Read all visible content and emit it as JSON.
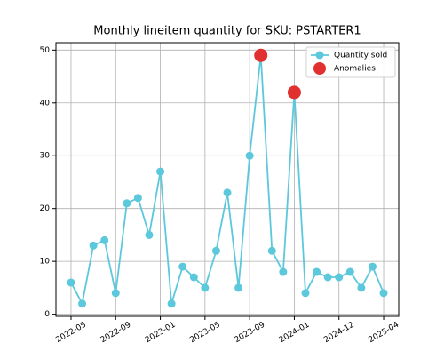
{
  "chart_data": {
    "type": "line",
    "title": "Monthly lineitem quantity for SKU: PSTARTER1",
    "categories": [
      "2022-05",
      null,
      null,
      null,
      "2022-09",
      null,
      null,
      null,
      "2023-01",
      null,
      null,
      null,
      "2023-05",
      null,
      null,
      null,
      "2023-09",
      null,
      null,
      null,
      "2024-01",
      null,
      null,
      null,
      "2024-12",
      null,
      null,
      null,
      "2025-04"
    ],
    "series": [
      {
        "name": "Quantity sold",
        "color": "#5bc8dc",
        "line": true,
        "values": [
          6,
          2,
          13,
          14,
          4,
          21,
          22,
          15,
          27,
          2,
          9,
          7,
          5,
          12,
          23,
          5,
          30,
          49,
          12,
          8,
          42,
          4,
          8,
          7,
          7,
          8,
          5,
          9,
          4
        ]
      },
      {
        "name": "Anomalies",
        "color": "#e03030",
        "line": false,
        "values": [
          null,
          null,
          null,
          null,
          null,
          null,
          null,
          null,
          null,
          null,
          null,
          null,
          null,
          null,
          null,
          null,
          null,
          49,
          null,
          null,
          42,
          null,
          null,
          null,
          null,
          null,
          null,
          null,
          null
        ]
      }
    ],
    "ylim": [
      -0.4,
      51.4
    ],
    "yticks": [
      0,
      10,
      20,
      30,
      40,
      50
    ],
    "grid": true,
    "legend": "upper right"
  }
}
